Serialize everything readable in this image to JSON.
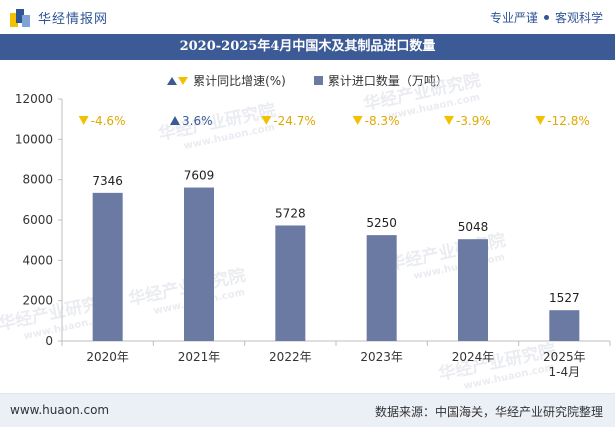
{
  "header": {
    "logo_text": "华经情报网",
    "slogan_left": "专业严谨",
    "slogan_right": "客观科学"
  },
  "footer": {
    "website": "www.huaon.com",
    "source": "数据来源：中国海关，华经产业研究院整理"
  },
  "watermark_text": "华经产业研究院",
  "watermark_url": "www.huaon.com",
  "colors": {
    "bar": "#6a7aa3",
    "title_bg": "#3b5a96",
    "up": "#3b5a96",
    "down": "#f2c200"
  },
  "chart_data": {
    "type": "bar",
    "title": "2020-2025年4月中国木及其制品进口数量",
    "categories": [
      "2020年",
      "2021年",
      "2022年",
      "2023年",
      "2024年",
      "2025年\n1-4月"
    ],
    "series": [
      {
        "name": "累计进口数量（万吨）",
        "values": [
          7346,
          7609,
          5728,
          5250,
          5048,
          1527
        ]
      },
      {
        "name": "累计同比增速(%)",
        "values": [
          -4.6,
          3.6,
          -24.7,
          -8.3,
          -3.9,
          -12.8
        ],
        "labels": [
          "-4.6%",
          "3.6%",
          "-24.7%",
          "-8.3%",
          "-3.9%",
          "-12.8%"
        ]
      }
    ],
    "ylim": [
      0,
      12000
    ],
    "yticks": [
      0,
      2000,
      4000,
      6000,
      8000,
      10000,
      12000
    ],
    "legend_position": "top-center",
    "grid": false
  }
}
